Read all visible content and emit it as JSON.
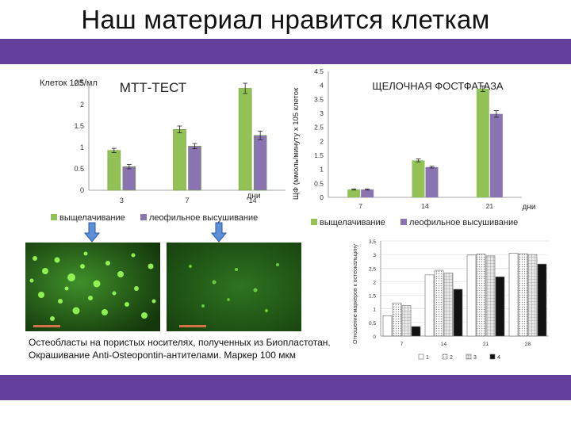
{
  "slide": {
    "title": "Наш материал нравится клеткам",
    "caption_line1": "Остеобласты на пористых носителях, полученных из Биопластотан.",
    "caption_line2": "Окрашивание Anti-Osteopontin-антителами. Маркер 100 мкм"
  },
  "colors": {
    "band": "#63409b",
    "series_green": "#92c256",
    "series_purple": "#8a74b2",
    "micro_bg": "#1b4a12"
  },
  "chart_data": [
    {
      "type": "bar",
      "title": "МТТ-ТЕСТ",
      "ylabel": "Клеток 105/мл",
      "xlabel": "дни",
      "categories": [
        "3",
        "7",
        "14"
      ],
      "ylim": [
        0,
        2.5
      ],
      "yticks": [
        "0",
        "0.5",
        "1",
        "1.5",
        "2",
        "2.5"
      ],
      "series": [
        {
          "name": "выщелачивание",
          "values": [
            0.93,
            1.42,
            2.38
          ],
          "errors": [
            0.05,
            0.08,
            0.12
          ]
        },
        {
          "name": "леофильное высушивание",
          "values": [
            0.55,
            1.03,
            1.28
          ],
          "errors": [
            0.05,
            0.06,
            0.1
          ]
        }
      ],
      "legend": "bottom"
    },
    {
      "type": "bar",
      "title": "ЩЕЛОЧНАЯ ФОСТФАТАЗА",
      "ylabel": "ЩФ (ммоль/минуту х 105 клеток",
      "xlabel": "дни",
      "categories": [
        "7",
        "14",
        "21"
      ],
      "ylim": [
        0,
        4.5
      ],
      "yticks": [
        "0",
        "0.5",
        "1",
        "1.5",
        "2",
        "2.5",
        "3",
        "3.5",
        "4",
        "4.5"
      ],
      "series": [
        {
          "name": "выщелачивание",
          "values": [
            0.28,
            1.32,
            3.88
          ],
          "errors": [
            0.02,
            0.05,
            0.1
          ]
        },
        {
          "name": "леофильное высушивание",
          "values": [
            0.28,
            1.08,
            2.98
          ],
          "errors": [
            0.02,
            0.03,
            0.12
          ]
        }
      ],
      "legend": "bottom"
    },
    {
      "type": "bar",
      "ylabel": "Отношение маркеров к остеокальцину",
      "categories": [
        "7",
        "14",
        "21",
        "28"
      ],
      "ylim": [
        0,
        3.5
      ],
      "yticks": [
        "0",
        "0,5",
        "1",
        "1,5",
        "2",
        "2,5",
        "3",
        "3,5"
      ],
      "series": [
        {
          "name": "1",
          "pattern": "white",
          "values": [
            0.75,
            2.25,
            2.98,
            3.05
          ]
        },
        {
          "name": "2",
          "pattern": "dots",
          "values": [
            1.22,
            2.42,
            3.02,
            3.03
          ]
        },
        {
          "name": "3",
          "pattern": "grid",
          "values": [
            1.12,
            2.32,
            2.95,
            3.0
          ]
        },
        {
          "name": "4",
          "pattern": "black",
          "values": [
            0.35,
            1.72,
            2.18,
            2.65
          ]
        }
      ],
      "legend": "bottom"
    }
  ]
}
